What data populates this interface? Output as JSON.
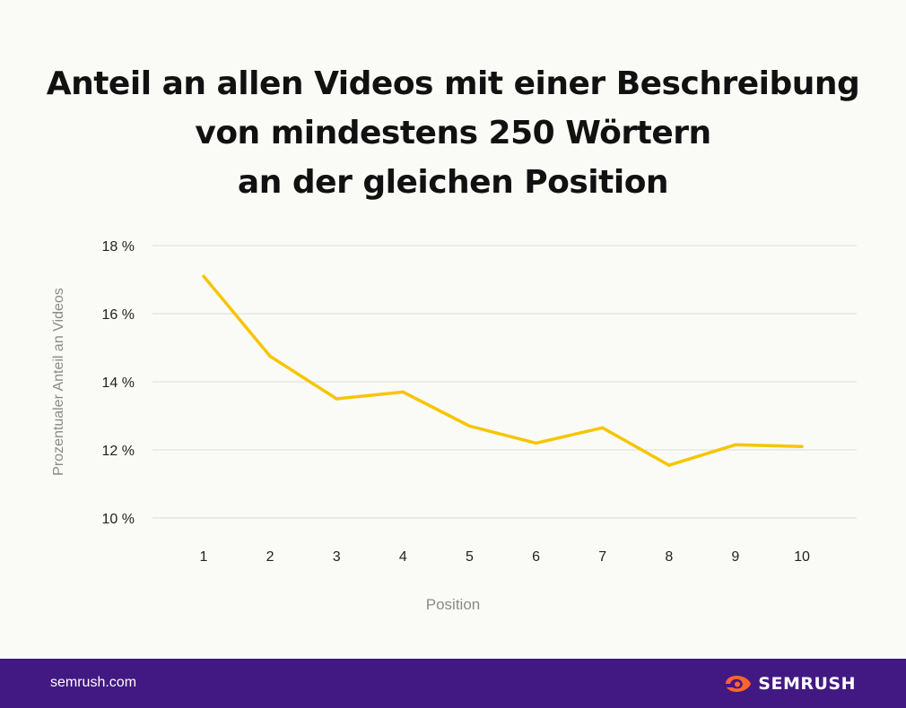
{
  "title_lines": [
    "Anteil an allen Videos mit einer Beschreibung",
    "von mindestens 250 Wörtern",
    "an der gleichen Position"
  ],
  "chart_data": {
    "type": "line",
    "x": [
      "1",
      "2",
      "3",
      "4",
      "5",
      "6",
      "7",
      "8",
      "9",
      "10"
    ],
    "series": [
      {
        "values": [
          17.1,
          14.75,
          13.5,
          13.7,
          12.7,
          12.2,
          12.65,
          11.55,
          12.15,
          12.1
        ]
      }
    ],
    "xlabel": "Position",
    "ylabel": "Prozentualer Anteil an Videos",
    "ylim": [
      10,
      18
    ],
    "yticks": [
      10,
      12,
      14,
      16,
      18
    ],
    "ytick_labels": [
      "10 %",
      "12 %",
      "14 %",
      "16 %",
      "18 %"
    ],
    "grid": true,
    "line_color": "#f6c500"
  },
  "footer": {
    "site": "semrush.com",
    "brand": "SEMRUSH",
    "brand_icon": "semrush-fire-icon",
    "background": "#421983",
    "accent": "#ff642d"
  }
}
